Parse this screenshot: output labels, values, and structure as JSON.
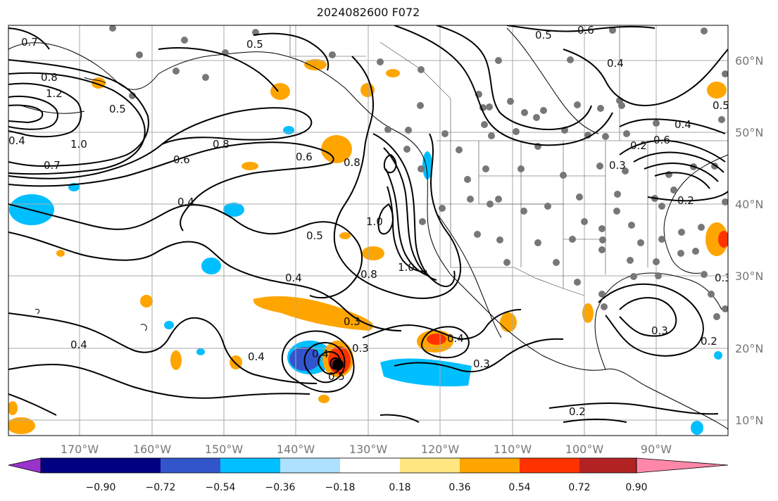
{
  "title": "2024082600 F072",
  "axes": {
    "lon_ticks": [
      "170°W",
      "160°W",
      "150°W",
      "140°W",
      "130°W",
      "120°W",
      "110°W",
      "100°W",
      "90°W"
    ],
    "lat_ticks": [
      "60°N",
      "50°N",
      "40°N",
      "30°N",
      "20°N",
      "10°N"
    ]
  },
  "contour_labels": [
    "0.7",
    "0.8",
    "1.2",
    "0.5",
    "1.0",
    "0.7",
    "0.8",
    "0.6",
    "0.4",
    "0.5",
    "0.6",
    "0.8",
    "1.0",
    "0.8",
    "1.0",
    "0.5",
    "0.4",
    "0.3",
    "0.4",
    "0.4",
    "0.4",
    "0.3",
    "0.5",
    "0.4",
    "0.3",
    "0.5",
    "0.6",
    "0.4",
    "0.4",
    "0.3",
    "0.2",
    "0.2",
    "0.6",
    "0.3",
    "0.3",
    "0.2",
    "0.2",
    "0.5",
    "0.4"
  ],
  "colorbar": {
    "ticks": [
      "−0.90",
      "−0.72",
      "−0.54",
      "−0.36",
      "−0.18",
      "0.18",
      "0.36",
      "0.54",
      "0.72",
      "0.90"
    ],
    "colors": {
      "under": "#9933cc",
      "bins": [
        "#000080",
        "#3355cc",
        "#00bfff",
        "#aee0ff",
        "#ffffff",
        "#ffe680",
        "#ffa500",
        "#ff3300",
        "#b22222"
      ],
      "over": "#ff88aa"
    }
  }
}
